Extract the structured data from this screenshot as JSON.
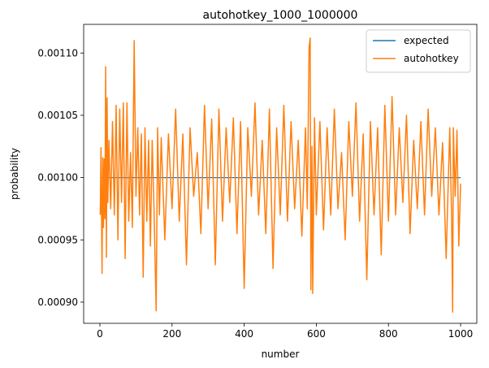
{
  "chart_data": {
    "type": "line",
    "title": "autohotkey_1000_1000000",
    "xlabel": "number",
    "ylabel": "probability",
    "xlim": [
      -45,
      1045
    ],
    "ylim": [
      0.000883,
      0.001123
    ],
    "xticks": [
      0,
      200,
      400,
      600,
      800,
      1000
    ],
    "xtick_labels": [
      "0",
      "200",
      "400",
      "600",
      "800",
      "1000"
    ],
    "yticks": [
      0.0009,
      0.00095,
      0.001,
      0.00105,
      0.0011
    ],
    "ytick_labels": [
      "0.00090",
      "0.00095",
      "0.00100",
      "0.00105",
      "0.00110"
    ],
    "grid": false,
    "legend_position": "top-right",
    "series": [
      {
        "name": "expected",
        "color": "#1f77b4",
        "x": [
          1,
          1000
        ],
        "y": [
          0.001,
          0.001
        ]
      },
      {
        "name": "autohotkey",
        "color": "#ff7f0e",
        "x": [
          1,
          3,
          6,
          8,
          10,
          12,
          14,
          16,
          18,
          20,
          22,
          25,
          30,
          35,
          40,
          45,
          50,
          55,
          60,
          65,
          70,
          75,
          80,
          85,
          90,
          95,
          100,
          105,
          110,
          115,
          120,
          125,
          130,
          135,
          140,
          145,
          150,
          156,
          160,
          165,
          170,
          180,
          190,
          200,
          210,
          220,
          230,
          240,
          250,
          260,
          270,
          280,
          290,
          300,
          310,
          320,
          330,
          340,
          350,
          360,
          370,
          380,
          390,
          400,
          410,
          420,
          430,
          440,
          450,
          460,
          470,
          480,
          490,
          500,
          510,
          520,
          530,
          540,
          550,
          560,
          570,
          575,
          580,
          583,
          585,
          588,
          590,
          595,
          600,
          610,
          620,
          630,
          640,
          650,
          660,
          670,
          680,
          690,
          700,
          710,
          720,
          730,
          740,
          750,
          760,
          770,
          780,
          790,
          800,
          810,
          820,
          830,
          840,
          850,
          860,
          870,
          880,
          890,
          900,
          910,
          920,
          930,
          940,
          950,
          960,
          970,
          975,
          978,
          980,
          985,
          990,
          995,
          1000
        ],
        "y": [
          0.00097,
          0.001024,
          0.000923,
          0.001016,
          0.00096,
          0.001015,
          0.000967,
          0.001089,
          0.000936,
          0.001064,
          0.00098,
          0.00103,
          0.000975,
          0.001045,
          0.00097,
          0.001058,
          0.00095,
          0.001055,
          0.00098,
          0.00106,
          0.000935,
          0.00106,
          0.000965,
          0.00102,
          0.00096,
          0.00111,
          0.000985,
          0.00104,
          0.00097,
          0.001035,
          0.00092,
          0.00104,
          0.000965,
          0.00103,
          0.000945,
          0.00103,
          0.000975,
          0.000893,
          0.00104,
          0.00097,
          0.001032,
          0.00095,
          0.001035,
          0.000975,
          0.001055,
          0.000965,
          0.001035,
          0.00093,
          0.00104,
          0.000985,
          0.00102,
          0.000955,
          0.001058,
          0.000975,
          0.001047,
          0.00093,
          0.001055,
          0.000965,
          0.00104,
          0.00098,
          0.001048,
          0.000955,
          0.001045,
          0.000911,
          0.00104,
          0.000985,
          0.00106,
          0.00097,
          0.00103,
          0.000955,
          0.001055,
          0.000927,
          0.00104,
          0.00097,
          0.001058,
          0.000965,
          0.001045,
          0.000975,
          0.00103,
          0.000953,
          0.00104,
          0.000975,
          0.001105,
          0.001112,
          0.00091,
          0.001025,
          0.000907,
          0.001048,
          0.00097,
          0.001045,
          0.000958,
          0.00104,
          0.00097,
          0.001055,
          0.000975,
          0.00102,
          0.00095,
          0.001045,
          0.000985,
          0.00106,
          0.000965,
          0.001035,
          0.000918,
          0.001045,
          0.00097,
          0.00104,
          0.000938,
          0.001058,
          0.000965,
          0.001065,
          0.00097,
          0.00104,
          0.00098,
          0.00105,
          0.000955,
          0.00103,
          0.000975,
          0.001045,
          0.00097,
          0.001055,
          0.000985,
          0.00104,
          0.00097,
          0.001028,
          0.000935,
          0.00104,
          0.00097,
          0.000892,
          0.00104,
          0.000985,
          0.001038,
          0.000945,
          0.000995
        ]
      }
    ]
  }
}
